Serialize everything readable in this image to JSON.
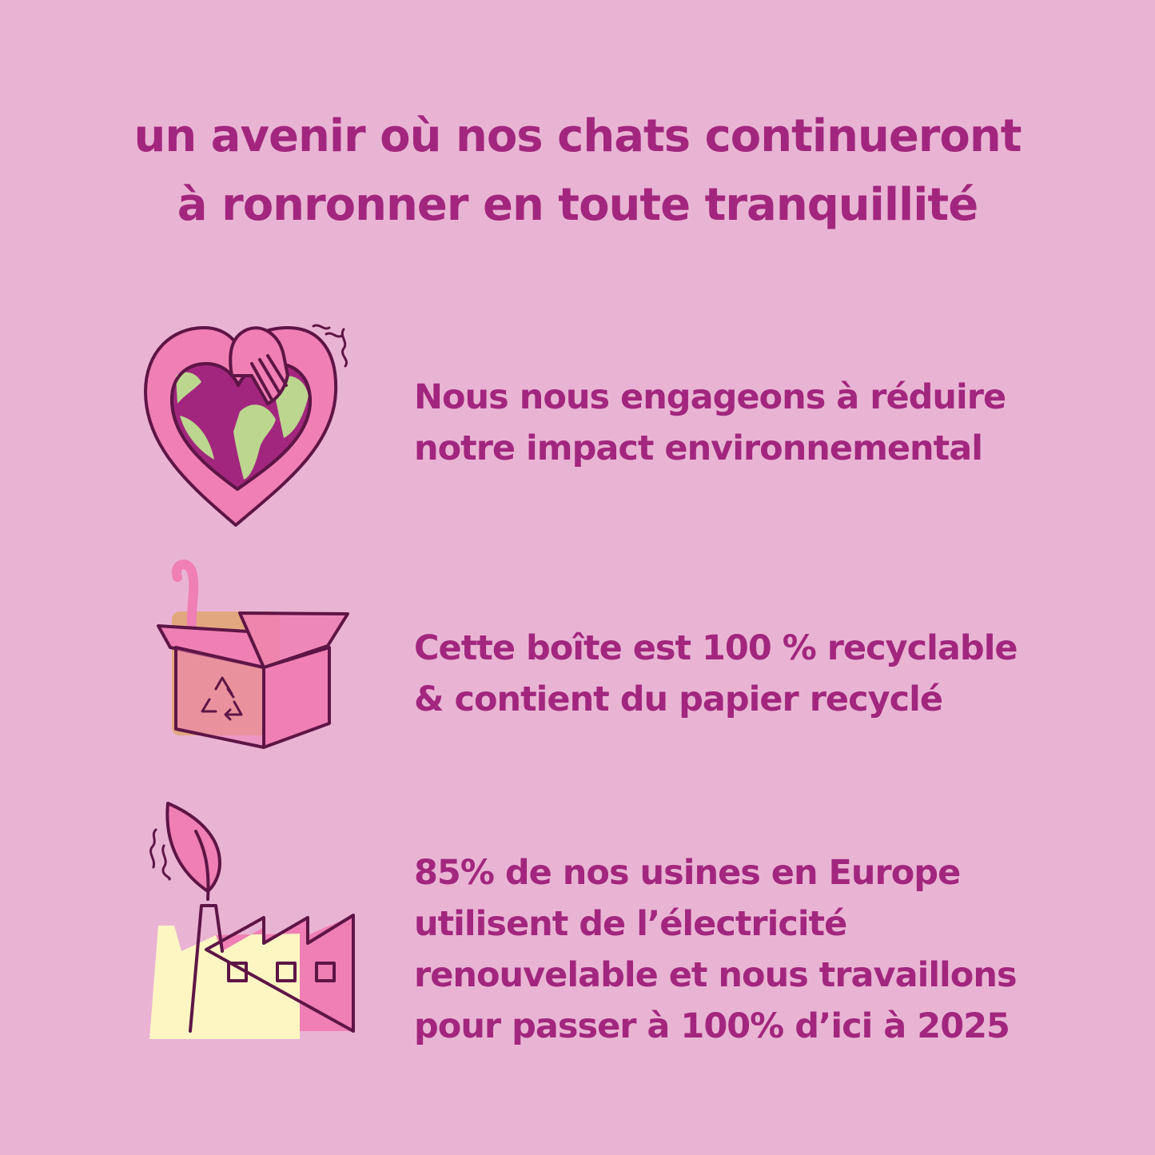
{
  "title": {
    "line1": "un avenir où nos chats continueront",
    "line2": "à ronronner en toute tranquillité"
  },
  "items": [
    {
      "icon": "heart-globe-icon",
      "lines": [
        "Nous nous engageons à réduire",
        "notre impact environnemental"
      ]
    },
    {
      "icon": "recycle-box-icon",
      "lines": [
        "Cette boîte est 100 % recyclable",
        "& contient du papier recyclé"
      ]
    },
    {
      "icon": "factory-leaf-icon",
      "lines": [
        "85% de nos usines en Europe",
        "utilisent de l’électricité",
        "renouvelable et nous travaillons",
        "pour passer à 100% d’ici à 2025"
      ]
    }
  ],
  "colors": {
    "background": "#e9b4d4",
    "text": "#a2267e",
    "pink": "#ef7fb4",
    "outline": "#5e1546",
    "green": "#bcd68f",
    "cardboard": "#e3a77f",
    "yellow": "#fdf6c3"
  }
}
